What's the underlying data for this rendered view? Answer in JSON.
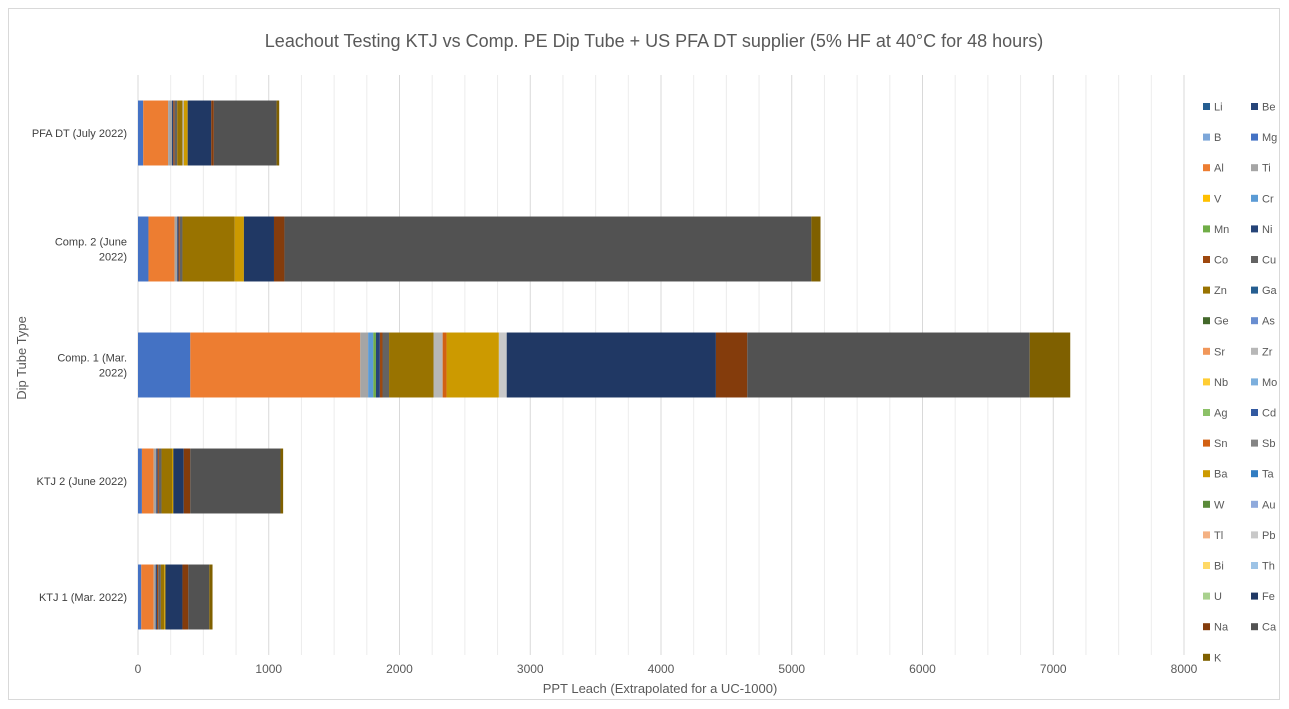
{
  "chart_data": {
    "type": "bar",
    "orientation": "horizontal",
    "stacked": true,
    "title": "Leachout Testing KTJ vs Comp. PE Dip Tube + US PFA DT supplier (5% HF at 40°C for 48 hours)",
    "xlabel": "PPT Leach (Extrapolated for a UC-1000)",
    "ylabel": "Dip Tube Type",
    "xlim": [
      0,
      8000
    ],
    "xticks": [
      0,
      1000,
      2000,
      3000,
      4000,
      5000,
      6000,
      7000,
      8000
    ],
    "grid": "vertical",
    "legend_position": "right",
    "categories": [
      "PFA DT (July 2022)",
      "Comp. 2 (June 2022)",
      "Comp. 1 (Mar. 2022)",
      "KTJ 2 (June 2022)",
      "KTJ 1 (Mar. 2022)"
    ],
    "series": [
      {
        "name": "Li",
        "color": "#255e91",
        "values": [
          0,
          0,
          0,
          0,
          0
        ]
      },
      {
        "name": "Be",
        "color": "#264478",
        "values": [
          0,
          0,
          0,
          0,
          0
        ]
      },
      {
        "name": "B",
        "color": "#7da7d9",
        "values": [
          0,
          0,
          0,
          0,
          0
        ]
      },
      {
        "name": "Mg",
        "color": "#4472c4",
        "values": [
          40,
          80,
          400,
          30,
          25
        ]
      },
      {
        "name": "Al",
        "color": "#ed7d31",
        "values": [
          190,
          200,
          1300,
          90,
          95
        ]
      },
      {
        "name": "Ti",
        "color": "#a5a5a5",
        "values": [
          30,
          20,
          60,
          20,
          15
        ]
      },
      {
        "name": "V",
        "color": "#ffc000",
        "values": [
          0,
          0,
          0,
          0,
          0
        ]
      },
      {
        "name": "Cr",
        "color": "#5b9bd5",
        "values": [
          0,
          0,
          40,
          0,
          0
        ]
      },
      {
        "name": "Mn",
        "color": "#70ad47",
        "values": [
          0,
          0,
          20,
          0,
          0
        ]
      },
      {
        "name": "Ni",
        "color": "#264478",
        "values": [
          10,
          10,
          30,
          10,
          10
        ]
      },
      {
        "name": "Co",
        "color": "#9e480e",
        "values": [
          10,
          10,
          20,
          10,
          10
        ]
      },
      {
        "name": "Cu",
        "color": "#636363",
        "values": [
          20,
          20,
          50,
          20,
          20
        ]
      },
      {
        "name": "Zn",
        "color": "#997300",
        "values": [
          40,
          400,
          340,
          80,
          25
        ]
      },
      {
        "name": "Ga",
        "color": "#255e91",
        "values": [
          0,
          0,
          0,
          0,
          0
        ]
      },
      {
        "name": "Ge",
        "color": "#43682b",
        "values": [
          0,
          0,
          0,
          0,
          0
        ]
      },
      {
        "name": "As",
        "color": "#698ed0",
        "values": [
          0,
          0,
          0,
          0,
          0
        ]
      },
      {
        "name": "Sr",
        "color": "#f1975a",
        "values": [
          0,
          0,
          0,
          0,
          0
        ]
      },
      {
        "name": "Zr",
        "color": "#b7b7b7",
        "values": [
          10,
          0,
          70,
          0,
          0
        ]
      },
      {
        "name": "Nb",
        "color": "#ffcd33",
        "values": [
          0,
          0,
          0,
          0,
          0
        ]
      },
      {
        "name": "Mo",
        "color": "#7cafdd",
        "values": [
          0,
          0,
          0,
          0,
          0
        ]
      },
      {
        "name": "Ag",
        "color": "#8cc168",
        "values": [
          0,
          0,
          0,
          0,
          0
        ]
      },
      {
        "name": "Cd",
        "color": "#335aa1",
        "values": [
          0,
          0,
          0,
          0,
          0
        ]
      },
      {
        "name": "Sn",
        "color": "#d26012",
        "values": [
          0,
          0,
          30,
          0,
          0
        ]
      },
      {
        "name": "Sb",
        "color": "#848484",
        "values": [
          0,
          0,
          0,
          0,
          0
        ]
      },
      {
        "name": "Ba",
        "color": "#cc9a00",
        "values": [
          30,
          70,
          400,
          10,
          10
        ]
      },
      {
        "name": "Ta",
        "color": "#327dc2",
        "values": [
          0,
          0,
          0,
          0,
          0
        ]
      },
      {
        "name": "W",
        "color": "#5a8a39",
        "values": [
          0,
          0,
          0,
          0,
          0
        ]
      },
      {
        "name": "Au",
        "color": "#8faadc",
        "values": [
          0,
          0,
          0,
          0,
          0
        ]
      },
      {
        "name": "Tl",
        "color": "#f4b183",
        "values": [
          0,
          0,
          0,
          0,
          0
        ]
      },
      {
        "name": "Pb",
        "color": "#c9c9c9",
        "values": [
          0,
          0,
          60,
          0,
          0
        ]
      },
      {
        "name": "Bi",
        "color": "#ffd966",
        "values": [
          0,
          0,
          0,
          0,
          0
        ]
      },
      {
        "name": "Th",
        "color": "#9dc3e6",
        "values": [
          0,
          0,
          0,
          0,
          0
        ]
      },
      {
        "name": "U",
        "color": "#a9d18e",
        "values": [
          0,
          0,
          0,
          0,
          0
        ]
      },
      {
        "name": "Fe",
        "color": "#203864",
        "values": [
          180,
          230,
          1600,
          80,
          130
        ]
      },
      {
        "name": "Na",
        "color": "#843c0c",
        "values": [
          20,
          80,
          240,
          50,
          45
        ]
      },
      {
        "name": "Ca",
        "color": "#525252",
        "values": [
          480,
          4030,
          2160,
          690,
          160
        ]
      },
      {
        "name": "K",
        "color": "#7f6000",
        "values": [
          20,
          70,
          310,
          20,
          25
        ]
      }
    ]
  }
}
